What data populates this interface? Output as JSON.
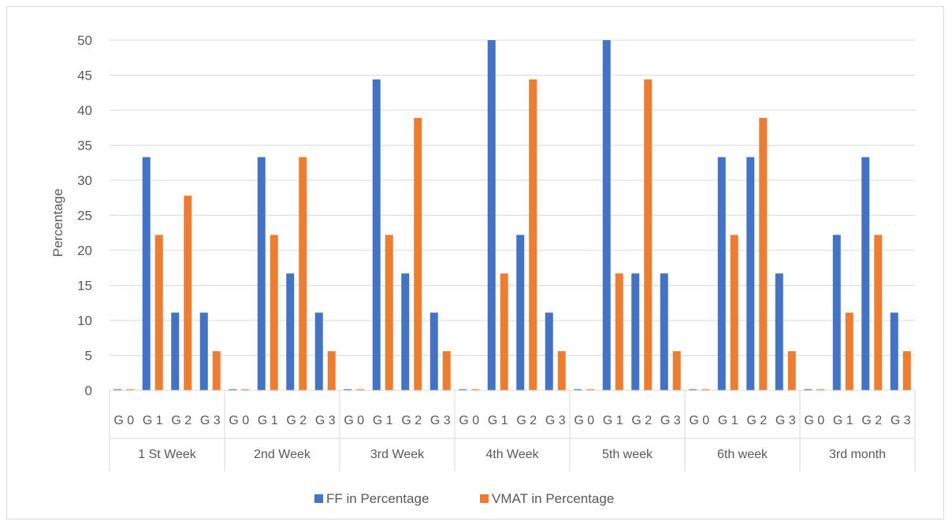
{
  "chart_data": {
    "type": "bar",
    "ylabel": "Percentage",
    "ylim": [
      0,
      50
    ],
    "yticks": [
      0,
      5,
      10,
      15,
      20,
      25,
      30,
      35,
      40,
      45,
      50
    ],
    "groups": [
      "1 St Week",
      "2nd Week",
      "3rd Week",
      "4th Week",
      "5th week",
      "6th week",
      "3rd month"
    ],
    "grades": [
      "G 0",
      "G 1",
      "G 2",
      "G 3"
    ],
    "series": [
      {
        "name": "FF in Percentage",
        "color": "#4472c4",
        "values": [
          [
            0,
            33.3,
            11.1,
            11.1
          ],
          [
            0,
            33.3,
            16.7,
            11.1
          ],
          [
            0,
            44.4,
            16.7,
            11.1
          ],
          [
            0,
            50,
            22.2,
            11.1
          ],
          [
            0,
            50,
            16.7,
            16.7
          ],
          [
            0,
            33.3,
            33.3,
            16.7
          ],
          [
            0,
            22.2,
            33.3,
            11.1
          ]
        ]
      },
      {
        "name": "VMAT in Percentage",
        "color": "#ed7d31",
        "values": [
          [
            0,
            22.2,
            27.8,
            5.6
          ],
          [
            0,
            22.2,
            33.3,
            5.6
          ],
          [
            0,
            22.2,
            38.9,
            5.6
          ],
          [
            0,
            16.7,
            44.4,
            5.6
          ],
          [
            0,
            16.7,
            44.4,
            5.6
          ],
          [
            0,
            22.2,
            38.9,
            5.6
          ],
          [
            0,
            11.1,
            22.2,
            5.6
          ]
        ]
      }
    ],
    "grid": true,
    "legend": "bottom"
  }
}
